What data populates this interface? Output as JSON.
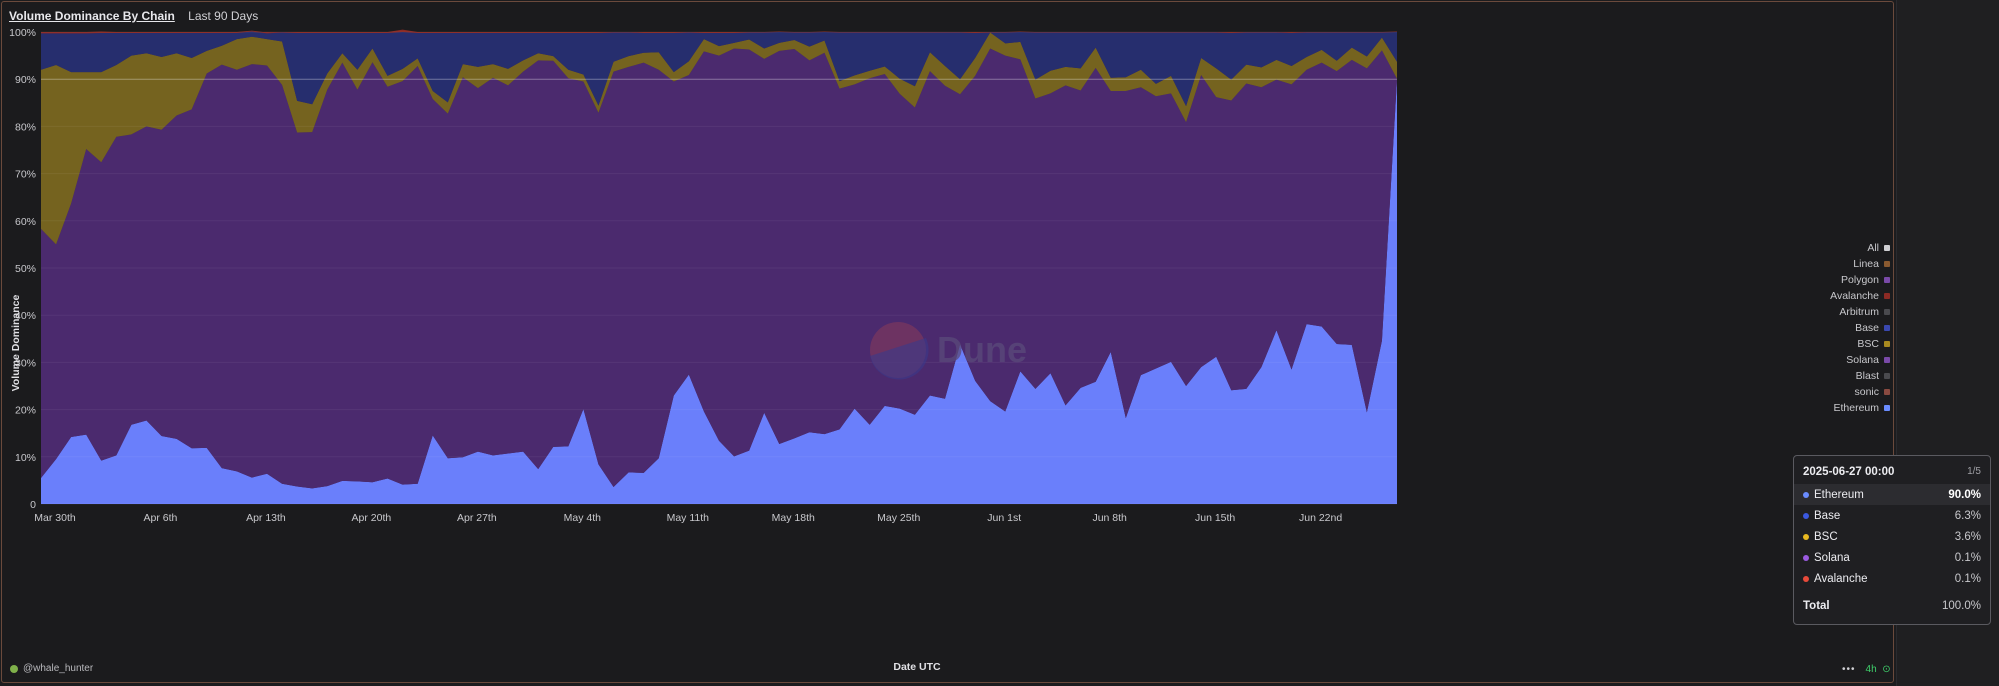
{
  "header": {
    "title": "Volume Dominance By Chain",
    "subtitle": "Last 90 Days"
  },
  "footer": {
    "user": "@whale_hunter",
    "refresh": "4h",
    "more": "•••"
  },
  "watermark": "Dune",
  "colors": {
    "ethereum": "#6a7ffb",
    "solana": "#4b2a6e",
    "bsc": "#75631f",
    "base": "#262e6e",
    "avalanche": "#8c2a24",
    "all": "#cfcfd3",
    "linea": "#8a5a30",
    "polygon": "#7a4aa8",
    "arbitrum": "#4a4a4e",
    "blast": "#4a4a4e",
    "sonic": "#8a4a40"
  },
  "legend": [
    {
      "label": "All",
      "color": "#cfcfd3"
    },
    {
      "label": "Linea",
      "color": "#8a5a30"
    },
    {
      "label": "Polygon",
      "color": "#7a4aa8"
    },
    {
      "label": "Avalanche",
      "color": "#8c2a24"
    },
    {
      "label": "Arbitrum",
      "color": "#4a4a4e"
    },
    {
      "label": "Base",
      "color": "#3a48b0"
    },
    {
      "label": "BSC",
      "color": "#a88a20"
    },
    {
      "label": "Solana",
      "color": "#7a4aa8"
    },
    {
      "label": "Blast",
      "color": "#4a4a4e"
    },
    {
      "label": "sonic",
      "color": "#8a4a40"
    },
    {
      "label": "Ethereum",
      "color": "#6a8cff"
    }
  ],
  "tooltip": {
    "date": "2025-06-27 00:00",
    "page": "1/5",
    "rows": [
      {
        "label": "Ethereum",
        "value": "90.0%",
        "color": "#6a8cff",
        "active": true
      },
      {
        "label": "Base",
        "value": "6.3%",
        "color": "#3a58e0",
        "active": false
      },
      {
        "label": "BSC",
        "value": "3.6%",
        "color": "#e8b820",
        "active": false
      },
      {
        "label": "Solana",
        "value": "0.1%",
        "color": "#9a5ae0",
        "active": false
      },
      {
        "label": "Avalanche",
        "value": "0.1%",
        "color": "#e84a3a",
        "active": false
      }
    ],
    "total_label": "Total",
    "total_value": "100.0%"
  },
  "chart_data": {
    "type": "area",
    "stacked": "percent",
    "title": "Volume Dominance By Chain",
    "subtitle": "Last 90 Days",
    "xlabel": "Date UTC",
    "ylabel": "Volume Dominance",
    "ylim": [
      0,
      100
    ],
    "y_ticks": [
      "0",
      "10%",
      "20%",
      "30%",
      "40%",
      "50%",
      "60%",
      "70%",
      "80%",
      "90%",
      "100%"
    ],
    "x_ticks": [
      "Mar 30th",
      "Apr 6th",
      "Apr 13th",
      "Apr 20th",
      "Apr 27th",
      "May 4th",
      "May 11th",
      "May 18th",
      "May 25th",
      "Jun 1st",
      "Jun 8th",
      "Jun 15th",
      "Jun 22nd"
    ],
    "x_start": "2025-03-30",
    "x_end": "2025-06-27",
    "legend_position": "right",
    "series": [
      {
        "name": "Ethereum",
        "values": [
          5.5,
          9.5,
          14.2,
          14.7,
          9.2,
          10.3,
          16.8,
          17.7,
          14.4,
          13.8,
          11.8,
          11.9,
          7.6,
          6.9,
          5.6,
          6.4,
          4.3,
          3.7,
          3.3,
          3.8,
          4.9,
          4.8,
          4.6,
          5.4,
          4.1,
          4.3,
          14.5,
          9.7,
          9.9,
          11.1,
          10.3,
          10.7,
          11.1,
          7.4,
          12.1,
          12.2,
          20.1,
          8.4,
          3.6,
          6.7,
          6.6,
          9.7,
          23,
          27.4,
          19.6,
          13.4,
          10.1,
          11.3,
          19.3,
          12.7,
          13.9,
          15.2,
          14.8,
          15.8,
          20.2,
          16.8,
          20.8,
          20.2,
          18.9,
          23,
          22.3,
          33.8,
          26.1,
          21.8,
          19.6,
          28.1,
          24.4,
          27.7,
          20.9,
          24.6,
          25.9,
          32.2,
          18.2,
          27.3,
          28.7,
          30.1,
          25,
          29,
          31.2,
          24.1,
          24.4,
          29,
          36.8,
          28.5,
          38.1,
          37.6,
          33.9,
          33.7,
          19.4,
          34.6,
          90
        ]
      },
      {
        "name": "Solana",
        "values": [
          52.8,
          45.5,
          49.5,
          60.5,
          63.2,
          67.5,
          61.5,
          62.3,
          64.9,
          68.5,
          71.8,
          79.3,
          85.5,
          85.1,
          87.6,
          86.5,
          84.5,
          75,
          75.5,
          84,
          88.6,
          83,
          89,
          83,
          85.5,
          88.5,
          71.3,
          73,
          80.5,
          77,
          80,
          78,
          80.5,
          86.6,
          81.8,
          78,
          69.4,
          74.5,
          88,
          85.9,
          86.9,
          82.3,
          66.5,
          63.5,
          76.3,
          81.6,
          86.4,
          85,
          75,
          83.3,
          82.5,
          78.8,
          80.8,
          72.2,
          68.7,
          73.4,
          70.3,
          66.7,
          65.1,
          68.7,
          66.3,
          53,
          64.6,
          74.7,
          75.4,
          66.1,
          61.5,
          59.3,
          67.8,
          63,
          66.5,
          55.3,
          69.3,
          61,
          57.7,
          56.9,
          55.9,
          61.9,
          55,
          61.4,
          64.7,
          59.3,
          53.1,
          60.4,
          53.9,
          55.9,
          57.8,
          60.4,
          72.9,
          61.5,
          0.1
        ]
      },
      {
        "name": "BSC",
        "values": [
          33.7,
          38,
          27.8,
          16.3,
          19.1,
          15.2,
          16.7,
          15.5,
          15.4,
          13.2,
          10.9,
          4.8,
          4,
          6.5,
          5.8,
          5.6,
          9.2,
          6.7,
          5.9,
          3.4,
          2,
          4.2,
          2.9,
          2.3,
          2.6,
          1.6,
          1.7,
          2.4,
          2.8,
          4.5,
          2.9,
          3.5,
          2.4,
          1.5,
          1,
          1.8,
          1.5,
          1.5,
          2.1,
          2.3,
          2.1,
          3.7,
          2,
          2.9,
          2.6,
          2,
          1.2,
          2.1,
          2.2,
          1.7,
          1.9,
          2.9,
          2.6,
          1.6,
          1.9,
          1.6,
          1.6,
          3.2,
          4.5,
          4,
          4.2,
          3.2,
          3.8,
          3.4,
          2.6,
          3.7,
          4,
          4.8,
          3.9,
          4.7,
          4.3,
          2.8,
          2.9,
          3.7,
          2.6,
          3.7,
          3.4,
          3.6,
          6.1,
          4.4,
          4,
          4.2,
          4.2,
          3.9,
          2.7,
          2.7,
          2.2,
          2.6,
          2.5,
          2.7,
          3.6
        ]
      },
      {
        "name": "Base",
        "values": [
          7.7,
          6.7,
          8.2,
          8.2,
          8.3,
          6.8,
          4.8,
          4.3,
          5.1,
          4.3,
          5.3,
          3.8,
          2.7,
          1.3,
          1.1,
          1.2,
          1.9,
          14.4,
          15.1,
          8.6,
          4.3,
          7.8,
          3.3,
          9.1,
          7.8,
          5.4,
          12.3,
          14.7,
          6.6,
          7.2,
          6.6,
          7.6,
          5.8,
          4.3,
          4.9,
          7.8,
          8.8,
          15.4,
          6.2,
          5,
          4.2,
          4.1,
          8.3,
          6.1,
          1.3,
          2.8,
          2.1,
          1.5,
          3.4,
          2.3,
          1.6,
          3,
          1.8,
          10.3,
          9.1,
          8.1,
          7.2,
          9.8,
          11.4,
          4.2,
          7.1,
          9.9,
          5.3,
          0,
          2.3,
          2.1,
          10,
          8.1,
          7.3,
          7.6,
          3.2,
          9.6,
          9.5,
          7.9,
          10.9,
          9.2,
          15.6,
          5.4,
          7.6,
          9.9,
          6.8,
          7.4,
          5.8,
          7,
          5.2,
          3.7,
          6,
          3.2,
          5.1,
          1.1,
          6.3
        ]
      },
      {
        "name": "Avalanche",
        "values": [
          0.3,
          0.3,
          0.3,
          0.3,
          0.3,
          0.2,
          0.2,
          0.2,
          0.2,
          0.2,
          0.2,
          0.2,
          0.2,
          0.2,
          0.2,
          0.2,
          0.1,
          0.2,
          0.2,
          0.2,
          0.2,
          0.2,
          0.2,
          0.2,
          0.5,
          0.2,
          0.2,
          0.2,
          0.2,
          0.2,
          0.2,
          0.2,
          0.2,
          0.2,
          0.2,
          0.2,
          0.2,
          0.2,
          0.1,
          0.1,
          0.2,
          0.2,
          0.2,
          0.1,
          0.2,
          0.2,
          0.2,
          0.1,
          0.1,
          0.1,
          0.1,
          0.1,
          0.1,
          0.1,
          0.1,
          0.1,
          0.1,
          0.1,
          0.1,
          0.1,
          0.1,
          0.1,
          0.2,
          0.1,
          0.1,
          0.1,
          0.1,
          0.1,
          0.1,
          0.1,
          0.1,
          0.1,
          0.1,
          0.1,
          0.1,
          0.1,
          0.1,
          0.1,
          0.1,
          0.2,
          0.1,
          0.1,
          0.1,
          0.1,
          0.1,
          0.1,
          0.1,
          0.1,
          0.1,
          0.1,
          0.1
        ]
      }
    ]
  }
}
